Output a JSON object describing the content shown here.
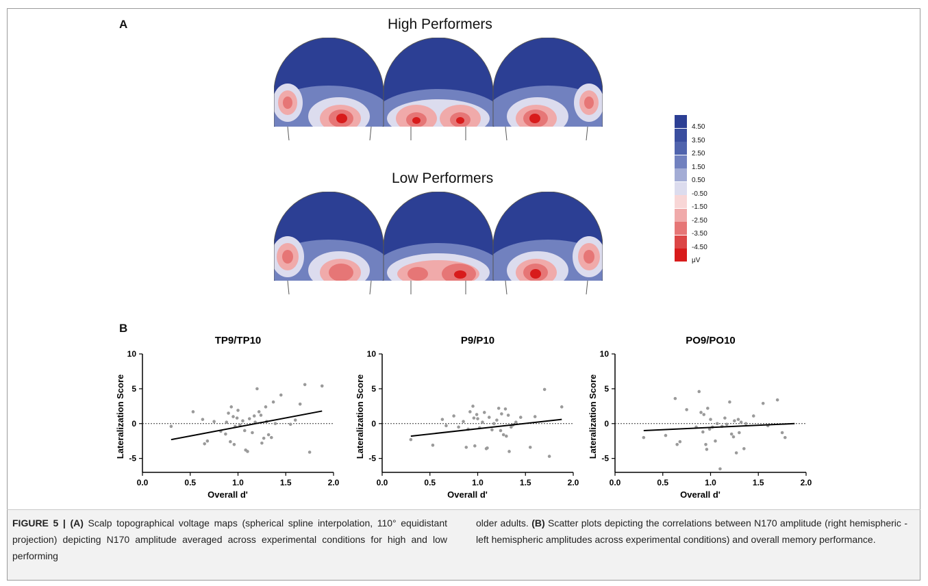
{
  "panel_a": {
    "letter": "A",
    "row1_title": "High Performers",
    "row2_title": "Low Performers",
    "colorbar": {
      "ticks": [
        "4.50",
        "3.50",
        "2.50",
        "1.50",
        "0.50",
        "-0.50",
        "-1.50",
        "-2.50",
        "-3.50",
        "-4.50"
      ],
      "unit": "μV",
      "colors": [
        "#2c3f94",
        "#3a4e9f",
        "#5064ad",
        "#7181bf",
        "#a3acd5",
        "#dcdcee",
        "#f8d6d6",
        "#f0aaaa",
        "#e67676",
        "#dc4646",
        "#d81b1b"
      ]
    }
  },
  "panel_b": {
    "letter": "B"
  },
  "chart_data": [
    {
      "type": "scatter",
      "title": "TP9/TP10",
      "xlabel": "Overall d'",
      "ylabel": "Lateralization Score",
      "xlim": [
        0.0,
        2.0
      ],
      "ylim": [
        -7,
        10
      ],
      "xticks": [
        "0.0",
        "0.5",
        "1.0",
        "1.5",
        "2.0"
      ],
      "yticks": [
        "10",
        "5",
        "0",
        "-5"
      ],
      "reference_line": 0,
      "fit": [
        [
          0.3,
          -2.3
        ],
        [
          1.88,
          1.8
        ]
      ],
      "points": [
        [
          0.3,
          -0.4
        ],
        [
          0.53,
          1.7
        ],
        [
          0.63,
          0.6
        ],
        [
          0.65,
          -2.9
        ],
        [
          0.68,
          -2.5
        ],
        [
          0.75,
          0.3
        ],
        [
          0.82,
          -1.1
        ],
        [
          0.87,
          -1.5
        ],
        [
          0.88,
          0.2
        ],
        [
          0.9,
          1.5
        ],
        [
          0.92,
          -2.6
        ],
        [
          0.93,
          2.4
        ],
        [
          0.95,
          1.0
        ],
        [
          0.96,
          -3.0
        ],
        [
          0.97,
          -0.4
        ],
        [
          0.99,
          0.8
        ],
        [
          1.0,
          1.9
        ],
        [
          1.02,
          -0.2
        ],
        [
          1.05,
          0.4
        ],
        [
          1.07,
          -1.0
        ],
        [
          1.08,
          -3.8
        ],
        [
          1.1,
          -4.0
        ],
        [
          1.12,
          0.7
        ],
        [
          1.15,
          -1.3
        ],
        [
          1.17,
          1.1
        ],
        [
          1.18,
          0.2
        ],
        [
          1.2,
          5.0
        ],
        [
          1.22,
          1.7
        ],
        [
          1.24,
          1.2
        ],
        [
          1.25,
          -2.8
        ],
        [
          1.27,
          -2.1
        ],
        [
          1.29,
          2.4
        ],
        [
          1.3,
          0.3
        ],
        [
          1.32,
          -1.6
        ],
        [
          1.35,
          -2.0
        ],
        [
          1.37,
          3.1
        ],
        [
          1.39,
          0.0
        ],
        [
          1.45,
          4.1
        ],
        [
          1.55,
          -0.1
        ],
        [
          1.6,
          0.5
        ],
        [
          1.65,
          2.8
        ],
        [
          1.7,
          5.6
        ],
        [
          1.75,
          -4.1
        ],
        [
          1.88,
          5.4
        ]
      ]
    },
    {
      "type": "scatter",
      "title": "P9/P10",
      "xlabel": "Overall d'",
      "ylabel": "Lateralization Score",
      "xlim": [
        0.0,
        2.0
      ],
      "ylim": [
        -7,
        10
      ],
      "xticks": [
        "0.0",
        "0.5",
        "1.0",
        "1.5",
        "2.0"
      ],
      "yticks": [
        "10",
        "5",
        "0",
        "-5"
      ],
      "reference_line": 0,
      "fit": [
        [
          0.3,
          -1.8
        ],
        [
          1.88,
          0.6
        ]
      ],
      "points": [
        [
          0.3,
          -2.3
        ],
        [
          0.53,
          -3.1
        ],
        [
          0.63,
          0.6
        ],
        [
          0.67,
          -0.3
        ],
        [
          0.75,
          1.1
        ],
        [
          0.8,
          -0.5
        ],
        [
          0.85,
          0.3
        ],
        [
          0.88,
          -3.4
        ],
        [
          0.9,
          -0.8
        ],
        [
          0.92,
          1.7
        ],
        [
          0.95,
          2.5
        ],
        [
          0.96,
          0.8
        ],
        [
          0.97,
          -3.2
        ],
        [
          0.99,
          1.3
        ],
        [
          1.0,
          0.7
        ],
        [
          1.02,
          -0.6
        ],
        [
          1.05,
          0.2
        ],
        [
          1.07,
          1.6
        ],
        [
          1.09,
          -3.6
        ],
        [
          1.1,
          -3.5
        ],
        [
          1.12,
          0.9
        ],
        [
          1.15,
          -0.9
        ],
        [
          1.17,
          0.0
        ],
        [
          1.2,
          0.5
        ],
        [
          1.22,
          2.2
        ],
        [
          1.24,
          -1.0
        ],
        [
          1.25,
          1.4
        ],
        [
          1.27,
          -1.6
        ],
        [
          1.29,
          2.1
        ],
        [
          1.3,
          -1.8
        ],
        [
          1.32,
          1.2
        ],
        [
          1.33,
          -4.0
        ],
        [
          1.35,
          -0.5
        ],
        [
          1.37,
          -0.2
        ],
        [
          1.4,
          0.2
        ],
        [
          1.45,
          0.9
        ],
        [
          1.55,
          -3.4
        ],
        [
          1.6,
          1.0
        ],
        [
          1.7,
          4.9
        ],
        [
          1.75,
          -4.7
        ],
        [
          1.88,
          2.4
        ]
      ]
    },
    {
      "type": "scatter",
      "title": "PO9/PO10",
      "xlabel": "Overall d'",
      "ylabel": "Lateralization Score",
      "xlim": [
        0.0,
        2.0
      ],
      "ylim": [
        -7,
        10
      ],
      "xticks": [
        "0.0",
        "0.5",
        "1.0",
        "1.5",
        "2.0"
      ],
      "yticks": [
        "10",
        "5",
        "0",
        "-5"
      ],
      "reference_line": 0,
      "fit": [
        [
          0.3,
          -1.0
        ],
        [
          1.88,
          0.0
        ]
      ],
      "points": [
        [
          0.3,
          -2.0
        ],
        [
          0.53,
          -1.7
        ],
        [
          0.63,
          3.6
        ],
        [
          0.65,
          -3.0
        ],
        [
          0.68,
          -2.6
        ],
        [
          0.75,
          2.0
        ],
        [
          0.85,
          -0.5
        ],
        [
          0.88,
          4.6
        ],
        [
          0.9,
          1.6
        ],
        [
          0.92,
          -1.2
        ],
        [
          0.93,
          1.3
        ],
        [
          0.95,
          -3.0
        ],
        [
          0.96,
          -3.7
        ],
        [
          0.97,
          2.2
        ],
        [
          0.99,
          -0.8
        ],
        [
          1.0,
          0.6
        ],
        [
          1.02,
          -0.5
        ],
        [
          1.05,
          -2.5
        ],
        [
          1.07,
          0.0
        ],
        [
          1.1,
          -6.5
        ],
        [
          1.12,
          -0.4
        ],
        [
          1.15,
          0.8
        ],
        [
          1.17,
          -0.1
        ],
        [
          1.2,
          3.1
        ],
        [
          1.22,
          -1.5
        ],
        [
          1.24,
          -1.9
        ],
        [
          1.25,
          0.4
        ],
        [
          1.27,
          -4.2
        ],
        [
          1.29,
          0.6
        ],
        [
          1.3,
          -1.3
        ],
        [
          1.32,
          0.2
        ],
        [
          1.35,
          -3.6
        ],
        [
          1.37,
          0.0
        ],
        [
          1.45,
          1.1
        ],
        [
          1.55,
          2.9
        ],
        [
          1.6,
          -0.3
        ],
        [
          1.7,
          3.4
        ],
        [
          1.75,
          -1.3
        ],
        [
          1.78,
          -2.0
        ]
      ]
    }
  ],
  "caption": {
    "figure_label": "FIGURE 5 | ",
    "label_a": "(A)",
    "text_a": " Scalp topographical voltage maps (spherical spline interpolation, 110° equidistant projection) depicting N170 amplitude averaged across experimental conditions for high and low performing",
    "text_a_cont": "older adults. ",
    "label_b": "(B)",
    "text_b": " Scatter plots depicting the correlations between N170 amplitude (right hemispheric - left hemispheric amplitudes across experimental conditions) and overall memory performance."
  }
}
